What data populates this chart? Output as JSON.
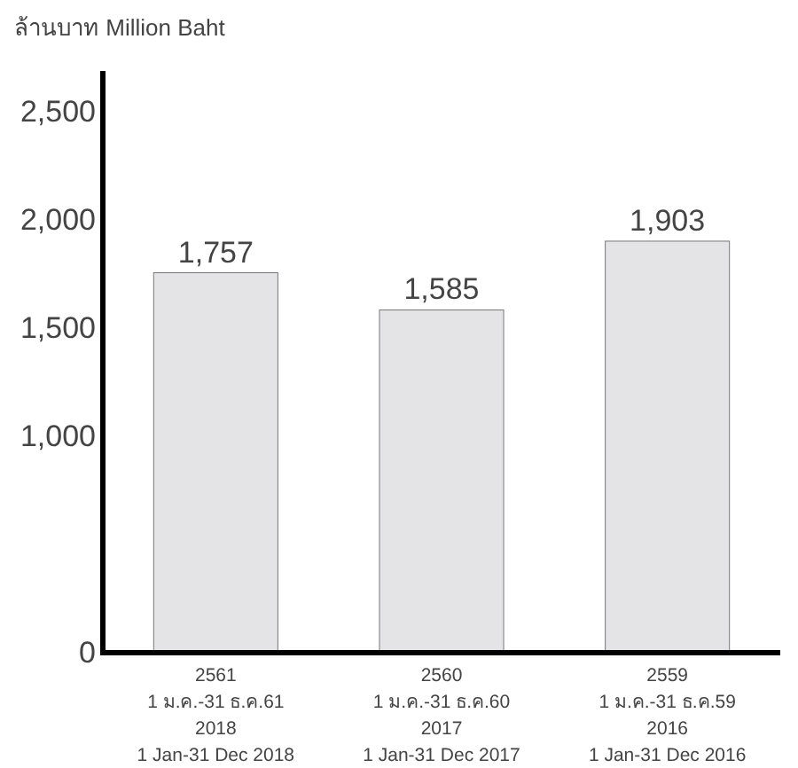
{
  "chart_data": {
    "type": "bar",
    "ylabel": "ล้านบาท Million Baht",
    "categories": [
      "2561\n1 ม.ค.-31 ธ.ค.61\n2018\n1 Jan-31 Dec 2018",
      "2560\n1 ม.ค.-31 ธ.ค.60\n2017\n1 Jan-31 Dec 2017",
      "2559\n1 ม.ค.-31 ธ.ค.59\n2016\n1 Jan-31 Dec 2016"
    ],
    "values": [
      1757,
      1585,
      1903
    ],
    "color": "#e4e4e6",
    "ylim": [
      0,
      2690
    ],
    "yticks": [
      {
        "value": 0,
        "label": "0"
      },
      {
        "value": 1000,
        "label": "1,000"
      },
      {
        "value": 1500,
        "label": "1,500"
      },
      {
        "value": 2000,
        "label": "2,000"
      },
      {
        "value": 2500,
        "label": "2,500"
      }
    ],
    "value_labels": [
      "1,757",
      "1,585",
      "1,903"
    ]
  }
}
